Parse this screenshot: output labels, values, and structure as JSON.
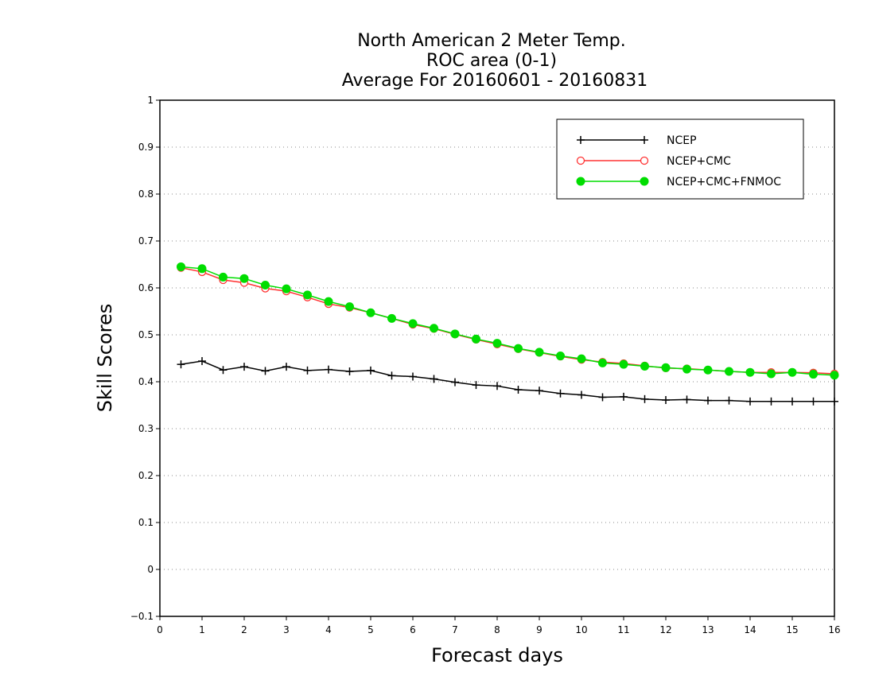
{
  "chart_data": {
    "type": "line",
    "title_lines": [
      "North American 2 Meter Temp.",
      "ROC area (0-1)",
      "Average For 20160601 - 20160831"
    ],
    "xlabel": "Forecast days",
    "ylabel": "Skill Scores",
    "xlim": [
      0,
      16
    ],
    "ylim": [
      -0.1,
      1
    ],
    "xticks": [
      0,
      1,
      2,
      3,
      4,
      5,
      6,
      7,
      8,
      9,
      10,
      11,
      12,
      13,
      14,
      15,
      16
    ],
    "xtick_labels": [
      "0",
      "1",
      "2",
      "3",
      "4",
      "5",
      "6",
      "7",
      "8",
      "9",
      "10",
      "11",
      "12",
      "13",
      "14",
      "15",
      "16"
    ],
    "yticks": [
      -0.1,
      0,
      0.1,
      0.2,
      0.3,
      0.4,
      0.5,
      0.6,
      0.7,
      0.8,
      0.9,
      1
    ],
    "ytick_labels": [
      "−0.1",
      "0",
      "0.1",
      "0.2",
      "0.3",
      "0.4",
      "0.5",
      "0.6",
      "0.7",
      "0.8",
      "0.9",
      "1"
    ],
    "grid": "horizontal-dotted",
    "legend_position": "top-right",
    "x": [
      0.5,
      1,
      1.5,
      2,
      2.5,
      3,
      3.5,
      4,
      4.5,
      5,
      5.5,
      6,
      6.5,
      7,
      7.5,
      8,
      8.5,
      9,
      9.5,
      10,
      10.5,
      11,
      11.5,
      12,
      12.5,
      13,
      13.5,
      14,
      14.5,
      15,
      15.5,
      16
    ],
    "series": [
      {
        "name": "NCEP",
        "color": "#000000",
        "marker": "plus",
        "values": [
          0.437,
          0.444,
          0.425,
          0.432,
          0.423,
          0.432,
          0.424,
          0.426,
          0.422,
          0.424,
          0.413,
          0.411,
          0.406,
          0.399,
          0.393,
          0.391,
          0.383,
          0.381,
          0.375,
          0.372,
          0.367,
          0.368,
          0.363,
          0.361,
          0.362,
          0.36,
          0.36,
          0.358,
          0.358,
          0.358,
          0.358,
          0.358
        ]
      },
      {
        "name": "NCEP+CMC",
        "color": "#ff3333",
        "marker": "open-circle",
        "values": [
          0.643,
          0.634,
          0.617,
          0.611,
          0.599,
          0.593,
          0.58,
          0.566,
          0.558,
          0.547,
          0.535,
          0.522,
          0.513,
          0.501,
          0.49,
          0.48,
          0.47,
          0.462,
          0.454,
          0.447,
          0.442,
          0.439,
          0.434,
          0.429,
          0.428,
          0.425,
          0.422,
          0.42,
          0.42,
          0.42,
          0.419,
          0.417
        ]
      },
      {
        "name": "NCEP+CMC+FNMOC",
        "color": "#00dd00",
        "marker": "filled-circle",
        "values": [
          0.645,
          0.641,
          0.623,
          0.62,
          0.606,
          0.598,
          0.585,
          0.571,
          0.56,
          0.547,
          0.535,
          0.524,
          0.514,
          0.502,
          0.491,
          0.482,
          0.471,
          0.463,
          0.455,
          0.449,
          0.44,
          0.437,
          0.433,
          0.43,
          0.427,
          0.425,
          0.422,
          0.42,
          0.417,
          0.42,
          0.416,
          0.414
        ]
      }
    ]
  }
}
